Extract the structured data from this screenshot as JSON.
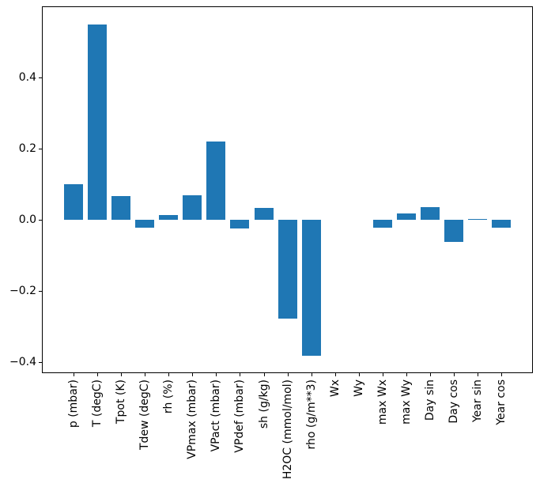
{
  "figure": {
    "background": "#ffffff",
    "axis_color": "#000000"
  },
  "chart_data": {
    "type": "bar",
    "title": "",
    "xlabel": "",
    "ylabel": "",
    "categories": [
      "p (mbar)",
      "T (degC)",
      "Tpot (K)",
      "Tdew (degC)",
      "rh (%)",
      "VPmax (mbar)",
      "VPact (mbar)",
      "VPdef (mbar)",
      "sh (g/kg)",
      "H2OC (mmol/mol)",
      "rho (g/m**3)",
      "Wx",
      "Wy",
      "max Wx",
      "max Wy",
      "Day sin",
      "Day cos",
      "Year sin",
      "Year cos"
    ],
    "values": [
      0.101,
      0.549,
      0.066,
      -0.021,
      0.013,
      0.069,
      0.221,
      -0.025,
      0.033,
      -0.277,
      -0.382,
      0.0,
      0.0,
      -0.022,
      0.019,
      0.036,
      -0.061,
      0.003,
      -0.021
    ],
    "bar_color": "#1f77b4",
    "bar_width": 0.8,
    "xlim": [
      -1.34,
      19.34
    ],
    "ylim": [
      -0.431,
      0.6
    ],
    "yticks": [
      {
        "value": 0.4,
        "label": "0.4"
      },
      {
        "value": 0.2,
        "label": "0.2"
      },
      {
        "value": 0.0,
        "label": "0.0"
      },
      {
        "value": -0.2,
        "label": "−0.2"
      },
      {
        "value": -0.4,
        "label": "−0.4"
      }
    ],
    "grid": false,
    "legend": "none"
  }
}
